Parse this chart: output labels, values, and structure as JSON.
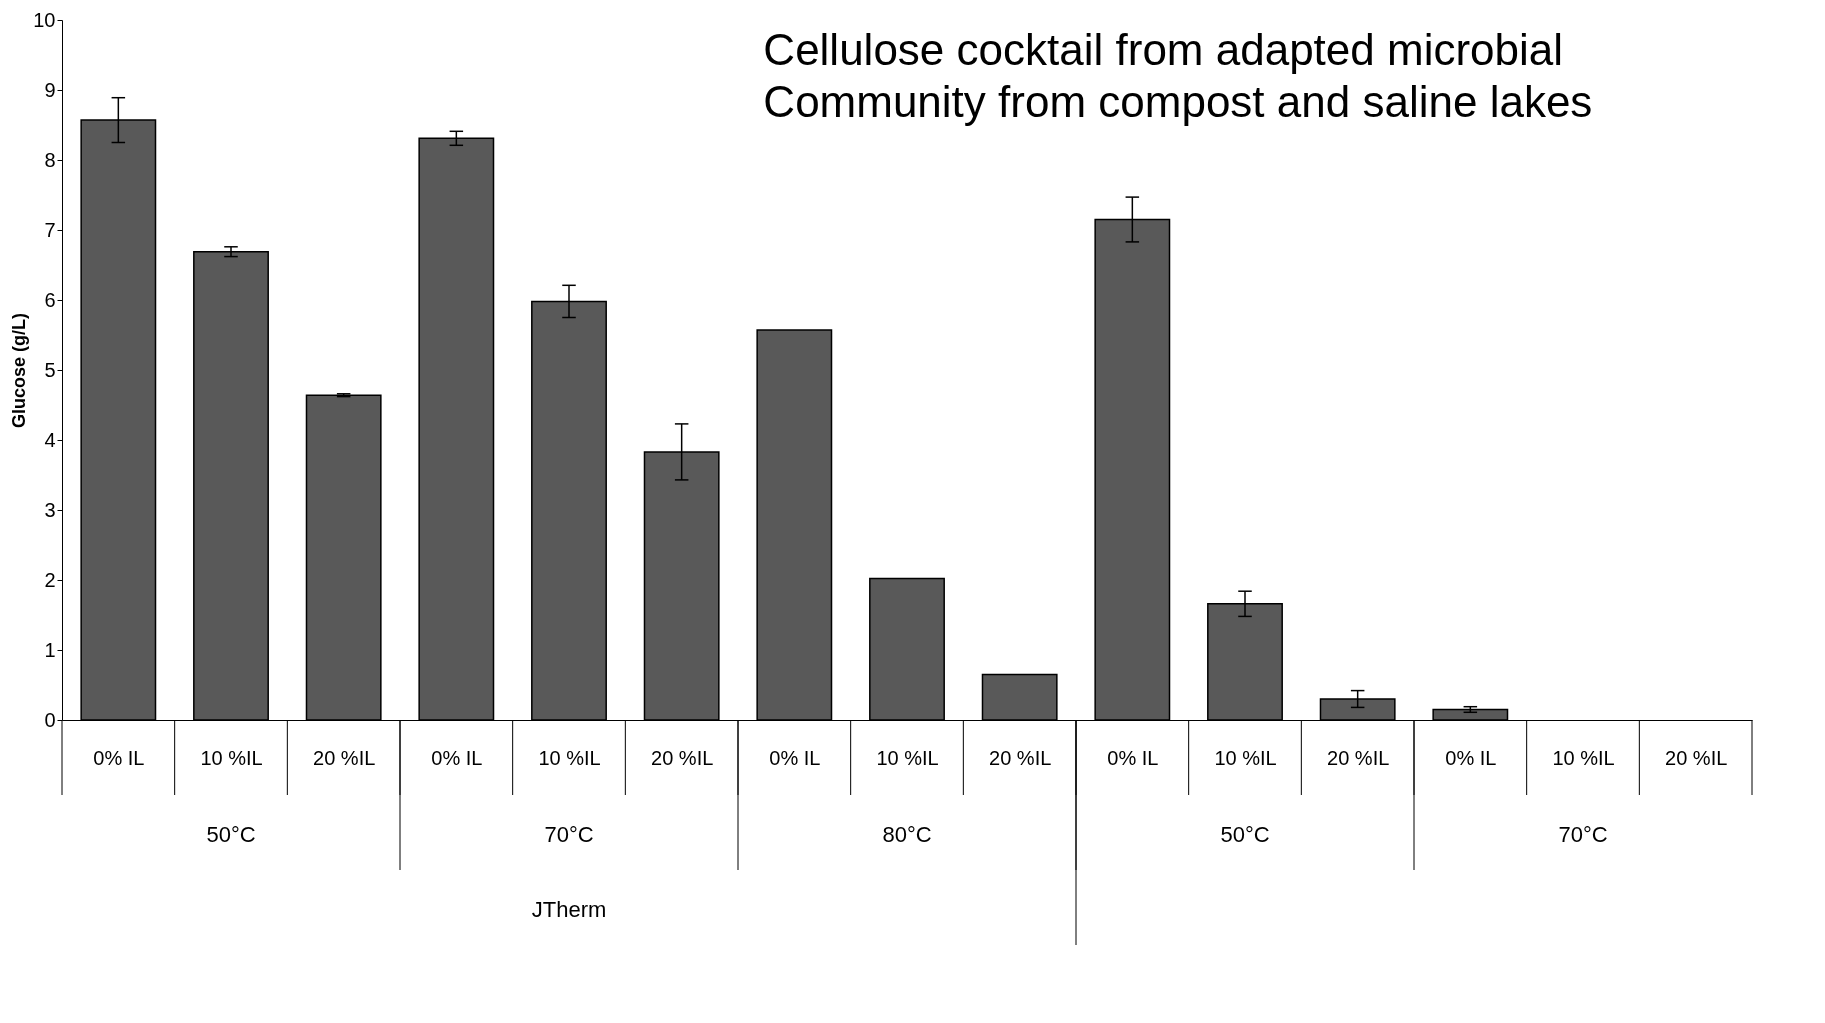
{
  "chart_data": {
    "type": "bar",
    "ylabel": "Glucose (g/L)",
    "categories": [
      "0% IL",
      "10 %IL",
      "20 %IL",
      "0% IL",
      "10 %IL",
      "20 %IL",
      "0% IL",
      "10 %IL",
      "20 %IL",
      "0% IL",
      "10 %IL",
      "20 %IL",
      "0% IL",
      "10 %IL",
      "20 %IL"
    ],
    "values": [
      8.57,
      6.69,
      4.64,
      8.31,
      5.98,
      3.83,
      5.57,
      2.02,
      0.65,
      7.15,
      1.66,
      0.3,
      0.15,
      0,
      0
    ],
    "errors": [
      0.32,
      0.07,
      0.02,
      0.1,
      0.23,
      0.4,
      null,
      null,
      null,
      0.32,
      0.18,
      0.12,
      0.04,
      null,
      null
    ],
    "color": "#595959",
    "ylim": [
      0,
      10
    ],
    "yticks": [
      0,
      1,
      2,
      3,
      4,
      5,
      6,
      7,
      8,
      9,
      10
    ],
    "grid": false,
    "annotations": [
      "Cellulose cocktail from adapted microbial",
      "Community from compost and saline lakes",
      "50°C",
      "70°C",
      "80°C",
      "50°C",
      "70°C",
      "JTherm"
    ]
  }
}
